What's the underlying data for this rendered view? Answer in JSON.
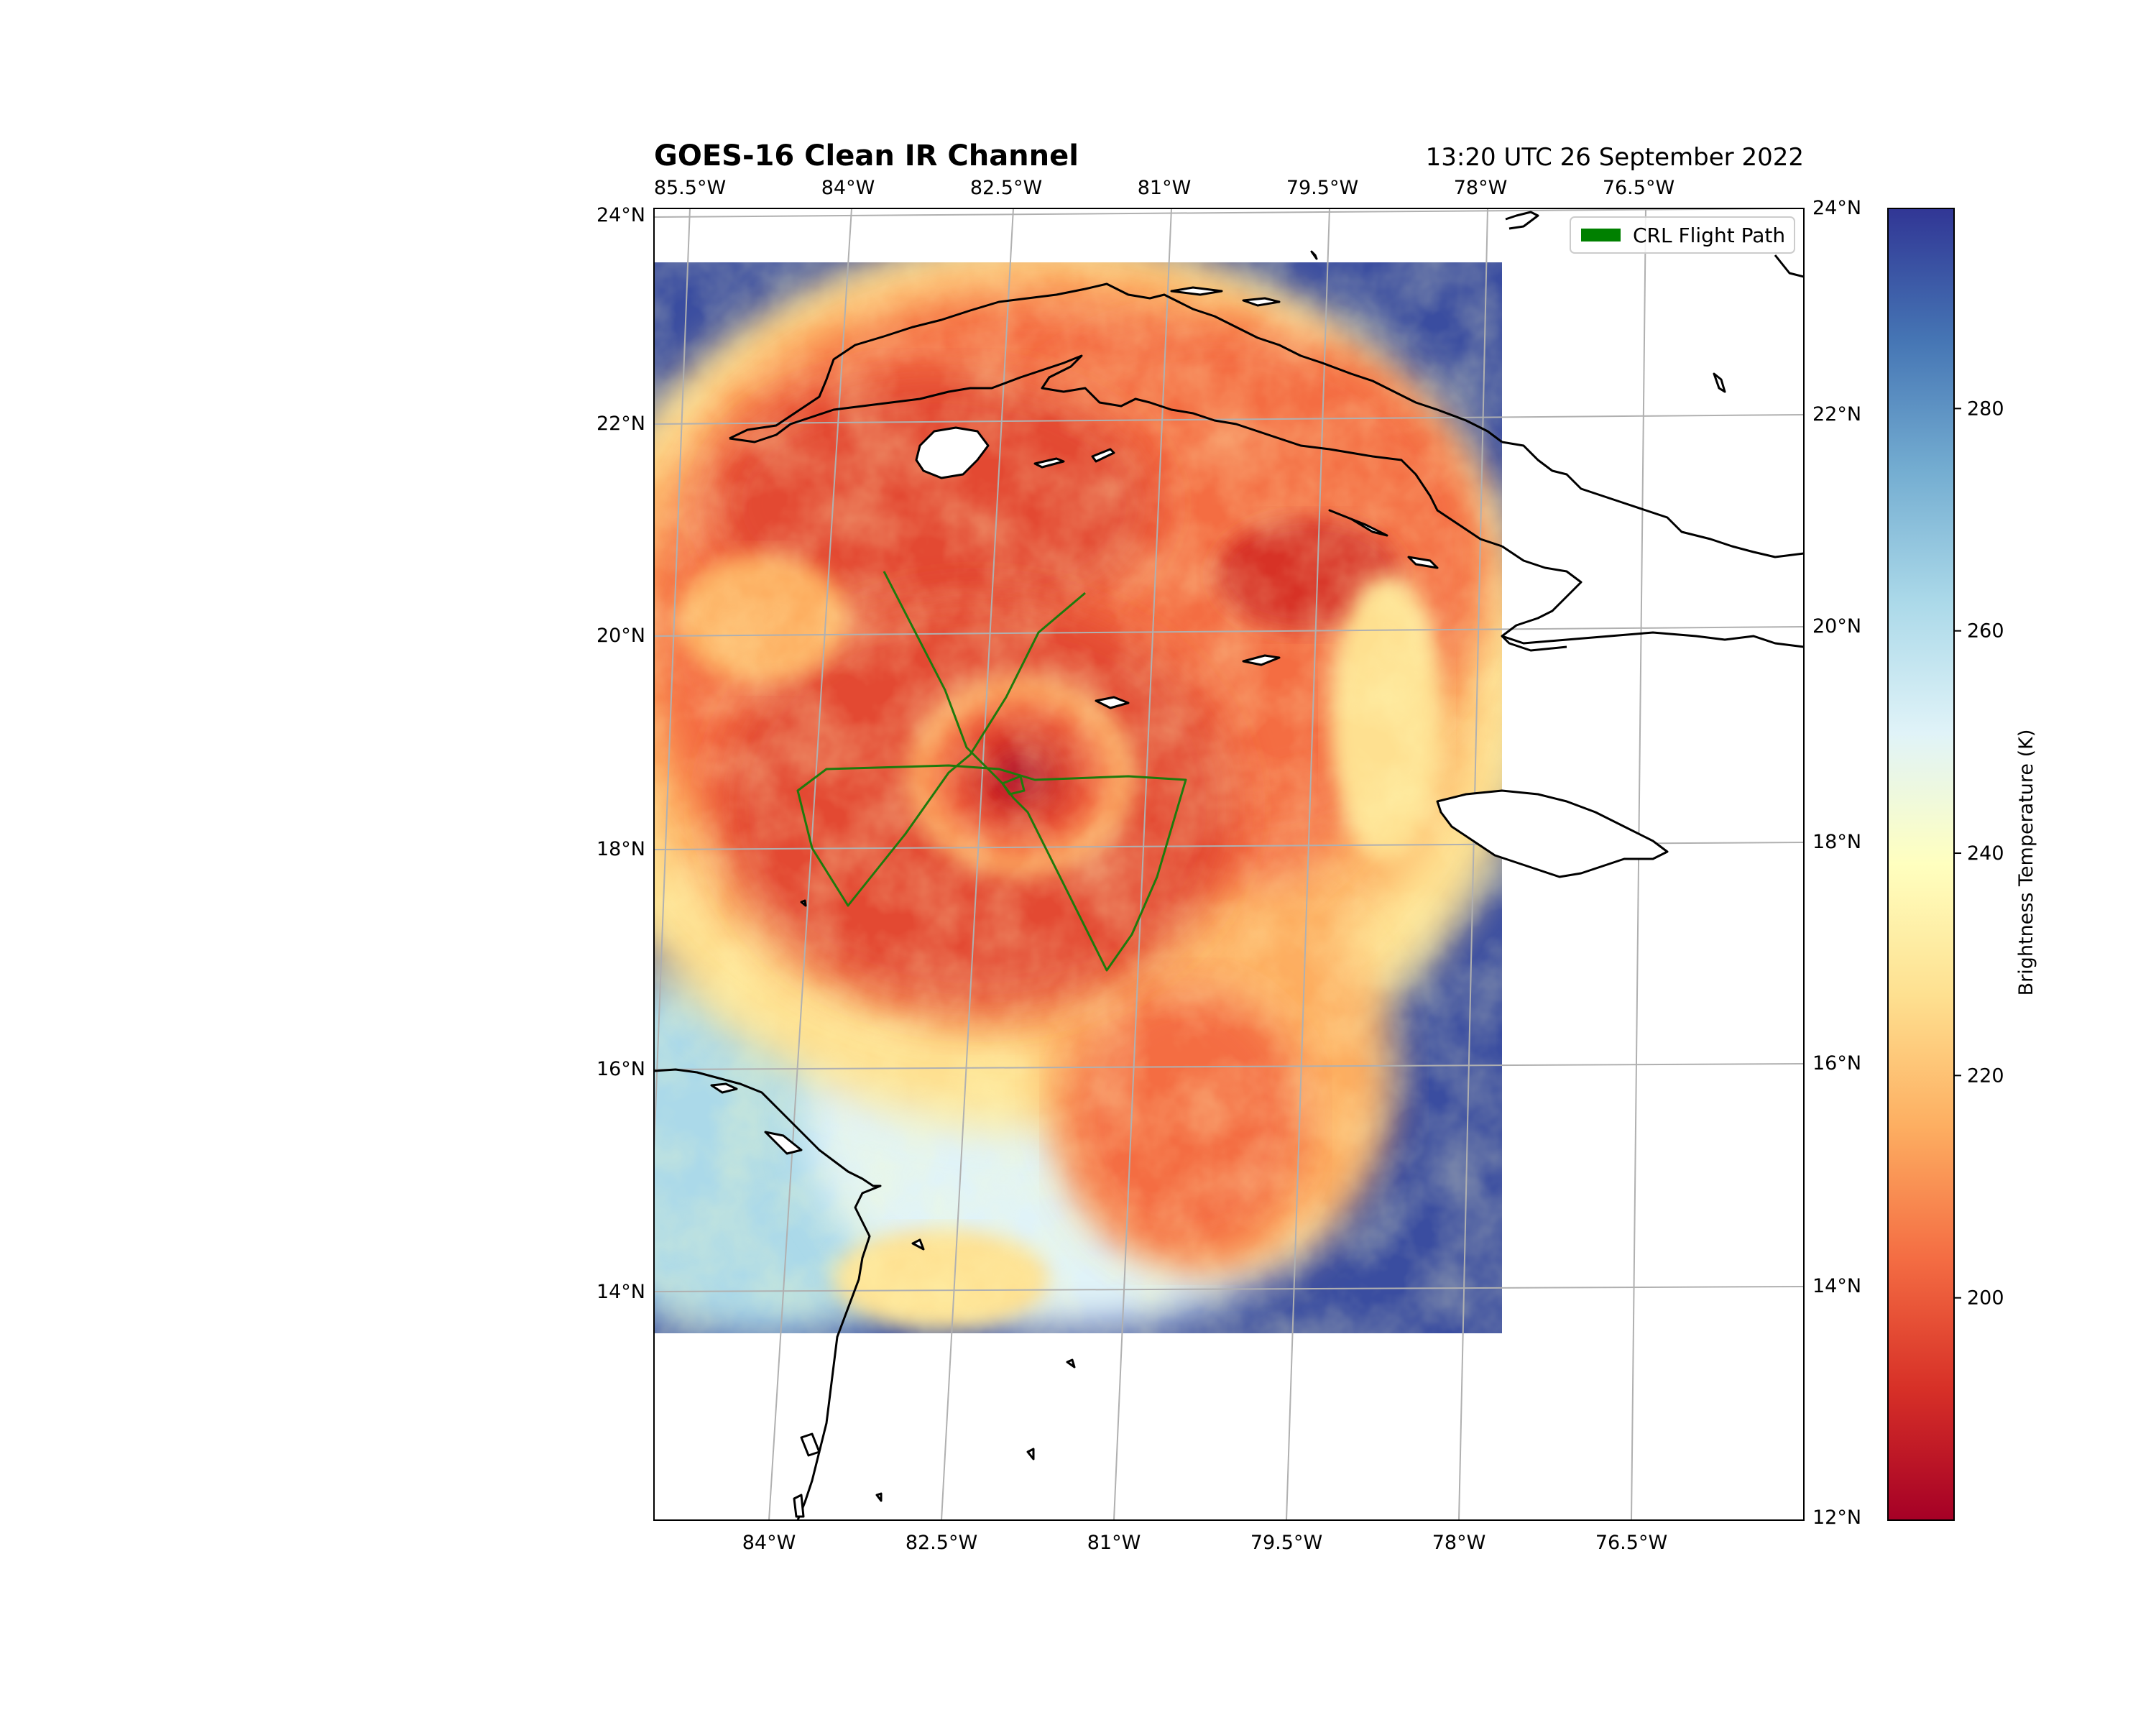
{
  "header": {
    "title": "GOES-16 Clean IR Channel",
    "timestamp": "13:20 UTC 26 September 2022"
  },
  "map": {
    "lon_range": [
      -85.0,
      -75.0
    ],
    "lat_range": [
      12.0,
      24.0
    ],
    "top_lon_labels": [
      "85.5°W",
      "84°W",
      "82.5°W",
      "81°W",
      "79.5°W",
      "78°W",
      "76.5°W"
    ],
    "bottom_lon_labels": [
      "84°W",
      "82.5°W",
      "81°W",
      "79.5°W",
      "78°W",
      "76.5°W"
    ],
    "left_lat_labels": [
      "24°N",
      "22°N",
      "20°N",
      "18°N",
      "16°N",
      "14°N"
    ],
    "right_lat_labels": [
      "24°N",
      "22°N",
      "20°N",
      "18°N",
      "16°N",
      "14°N",
      "12°N"
    ],
    "gridlines": true,
    "colormap": "RdYlBu",
    "colors": {
      "cold_cloud": "#a50026",
      "warm_surface": "#313695",
      "flight_path": "#1e7a0c",
      "coastline": "#000000"
    }
  },
  "legend": {
    "entries": [
      {
        "label": "CRL Flight Path",
        "color": "#008000"
      }
    ],
    "placement": "top-right"
  },
  "colorbar": {
    "label": "Brightness Temperature (K)",
    "ticks": [
      "280",
      "260",
      "240",
      "220",
      "200"
    ],
    "tick_values": [
      280,
      260,
      240,
      220,
      200
    ],
    "range": [
      180,
      298
    ],
    "colormap": "RdYlBu"
  },
  "chart_data": {
    "type": "heatmap",
    "title": "GOES-16 Clean IR Channel",
    "subtitle": "13:20 UTC 26 September 2022",
    "variable": "Brightness Temperature (K)",
    "value_range": [
      180,
      298
    ],
    "storm_center": {
      "lon": -82.2,
      "lat": 18.7
    },
    "flight_path": {
      "name": "CRL Flight Path",
      "points": [
        {
          "lon": -83.6,
          "lat": 20.5
        },
        {
          "lon": -82.7,
          "lat": 18.9
        },
        {
          "lon": -82.0,
          "lat": 18.5
        },
        {
          "lon": -80.6,
          "lat": 16.9
        },
        {
          "lon": -80.0,
          "lat": 17.5
        },
        {
          "lon": -79.6,
          "lat": 18.6
        },
        {
          "lon": -81.8,
          "lat": 18.5
        },
        {
          "lon": -83.2,
          "lat": 18.6
        },
        {
          "lon": -84.0,
          "lat": 18.4
        },
        {
          "lon": -83.4,
          "lat": 17.6
        },
        {
          "lon": -82.6,
          "lat": 18.7
        },
        {
          "lon": -81.2,
          "lat": 20.3
        }
      ]
    }
  }
}
